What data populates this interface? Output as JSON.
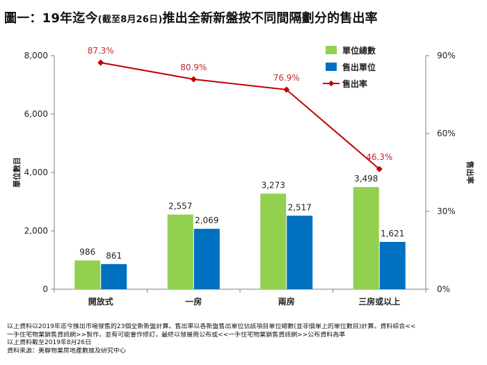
{
  "title": {
    "main": "圖一：19年迄今",
    "paren": "(截至8月26日)",
    "tail": "推出全新新盤按不同間隔劃分的售出率"
  },
  "colors": {
    "total_units": "#92d050",
    "sold_units": "#0070c0",
    "sell_rate": "#c00000",
    "axis": "#7f7f7f"
  },
  "chart_data": {
    "type": "bar",
    "categories": [
      "開放式",
      "一房",
      "兩房",
      "三房或以上"
    ],
    "series": [
      {
        "name": "單位總數",
        "values": [
          986,
          2557,
          3273,
          3498
        ],
        "labels": [
          "986",
          "2,557",
          "3,273",
          "3,498"
        ]
      },
      {
        "name": "售出單位",
        "values": [
          861,
          2069,
          2517,
          1621
        ],
        "labels": [
          "861",
          "2,069",
          "2,517",
          "1,621"
        ]
      }
    ],
    "line_series": {
      "name": "售出率",
      "values": [
        87.3,
        80.9,
        76.9,
        46.3
      ],
      "labels": [
        "87.3%",
        "80.9%",
        "76.9%",
        "46.3%"
      ]
    },
    "ylim": [
      0,
      8000
    ],
    "yticks": [
      "0",
      "2,000",
      "4,000",
      "6,000",
      "8,000"
    ],
    "y2lim": [
      0,
      90
    ],
    "y2ticks": [
      "0%",
      "30%",
      "60%",
      "90%"
    ],
    "ylabel": "單位數目",
    "y2label": "售出率",
    "legend_position": "top-right"
  },
  "notes": [
    "以上資料以2019年迄今推出市場發售的23個全新新盤計算。售出率以各新盤售出單位佔該項目單位總數(並非價單上的單位數目)計算。資料綜合<<",
    "一手住宅物業銷售資訊網>>製作，並有可能會作修訂，最終以發展商公布或<<一手住宅物業銷售資訊網>>公布資料為準",
    "以上資料截至2019年8月26日",
    "資料來源：美聯物業房地產數據及研究中心"
  ]
}
